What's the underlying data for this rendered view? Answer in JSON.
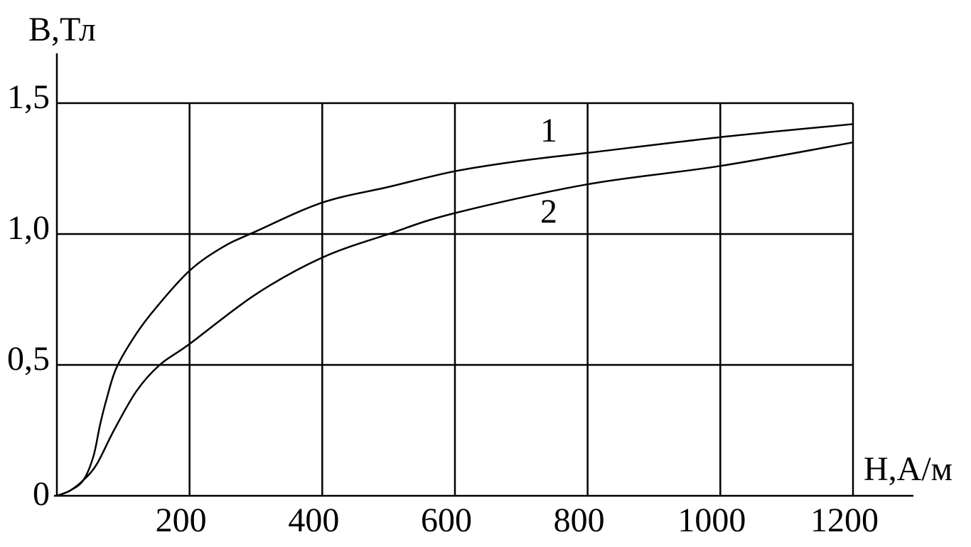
{
  "chart_data": {
    "type": "line",
    "y_label": "B,Тл",
    "x_label": "H,A/м",
    "xlim": [
      0,
      1200
    ],
    "ylim": [
      0,
      1.5
    ],
    "xticks": [
      200,
      400,
      600,
      800,
      1000,
      1200
    ],
    "yticks": [
      0,
      {
        "value": 0.5,
        "label": "0,5"
      },
      {
        "value": 1.0,
        "label": "1,0"
      },
      {
        "value": 1.5,
        "label": "1,5"
      }
    ],
    "grid": true,
    "series": [
      {
        "name": "1",
        "color": "#000000",
        "x": [
          0,
          20,
          40,
          55,
          65,
          75,
          90,
          120,
          150,
          200,
          250,
          300,
          400,
          500,
          600,
          700,
          800,
          1000,
          1200
        ],
        "values": [
          0,
          0.02,
          0.06,
          0.15,
          0.27,
          0.37,
          0.49,
          0.62,
          0.72,
          0.86,
          0.95,
          1.01,
          1.12,
          1.18,
          1.24,
          1.28,
          1.31,
          1.37,
          1.42
        ]
      },
      {
        "name": "2",
        "color": "#000000",
        "x": [
          0,
          20,
          40,
          60,
          86,
          120,
          155,
          200,
          300,
          400,
          500,
          600,
          800,
          1000,
          1200
        ],
        "values": [
          0,
          0.02,
          0.06,
          0.12,
          0.25,
          0.4,
          0.5,
          0.58,
          0.77,
          0.91,
          1.0,
          1.08,
          1.19,
          1.26,
          1.35
        ]
      }
    ]
  }
}
